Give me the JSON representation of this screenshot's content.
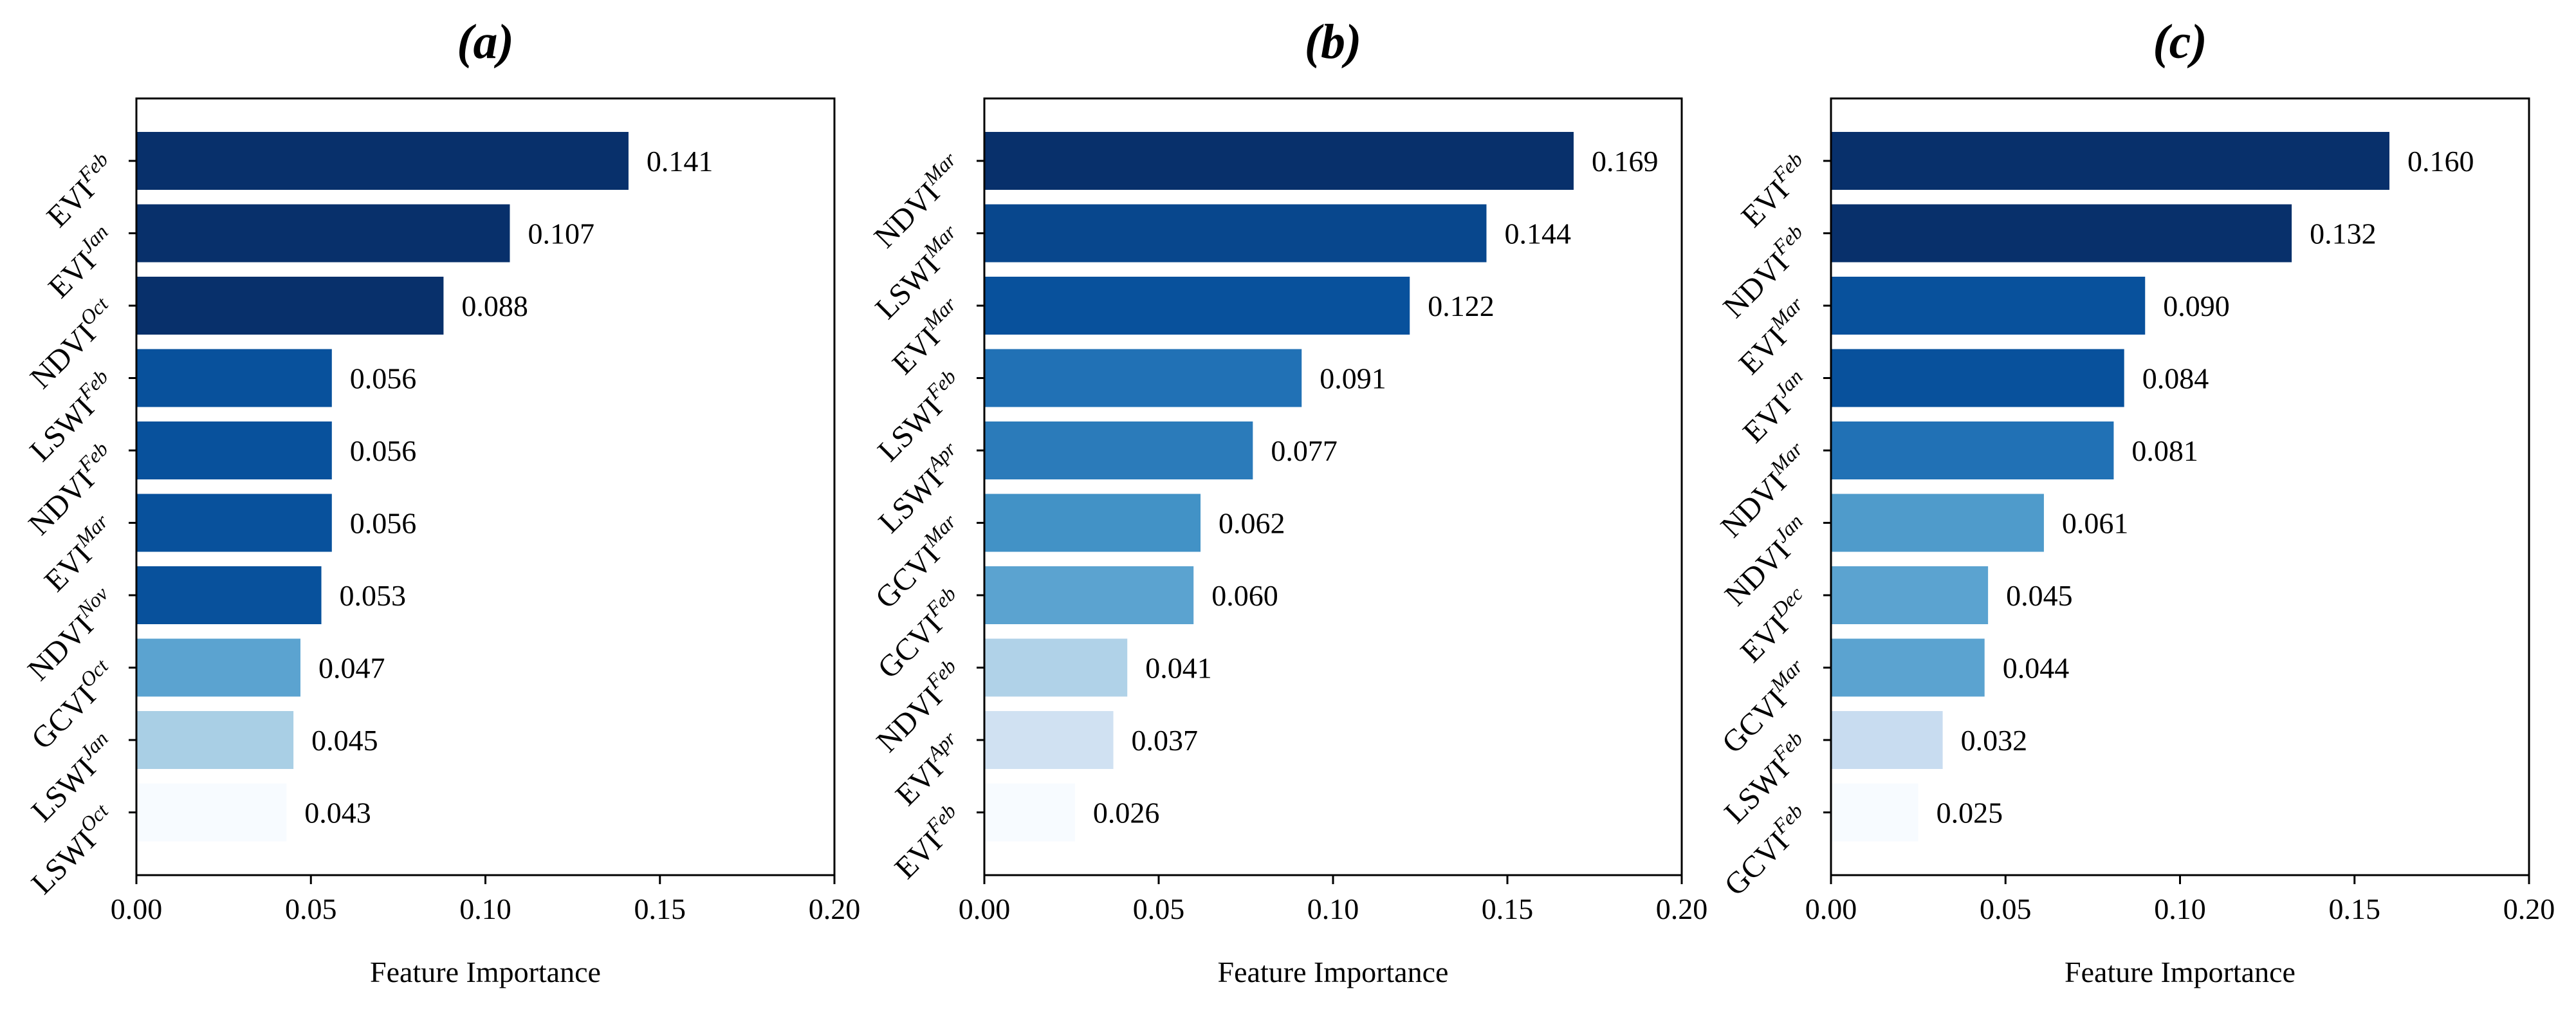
{
  "chart_data": [
    {
      "type": "bar",
      "orientation": "horizontal",
      "title": "(a)",
      "xlabel": "Feature Importance",
      "ylabel": "",
      "xlim": [
        0.0,
        0.2
      ],
      "xticks": [
        "0.00",
        "0.05",
        "0.10",
        "0.15",
        "0.20"
      ],
      "bars": [
        {
          "base": "EVI",
          "month": "Feb",
          "value": 0.141,
          "label": "0.141",
          "color": "#08306b"
        },
        {
          "base": "EVI",
          "month": "Jan",
          "value": 0.107,
          "label": "0.107",
          "color": "#08306b"
        },
        {
          "base": "NDVI",
          "month": "Oct",
          "value": 0.088,
          "label": "0.088",
          "color": "#08306b"
        },
        {
          "base": "LSWI",
          "month": "Feb",
          "value": 0.056,
          "label": "0.056",
          "color": "#08519c"
        },
        {
          "base": "NDVI",
          "month": "Feb",
          "value": 0.056,
          "label": "0.056",
          "color": "#08519c"
        },
        {
          "base": "EVI",
          "month": "Mar",
          "value": 0.056,
          "label": "0.056",
          "color": "#08519c"
        },
        {
          "base": "NDVI",
          "month": "Nov",
          "value": 0.053,
          "label": "0.053",
          "color": "#08519c"
        },
        {
          "base": "GCVI",
          "month": "Oct",
          "value": 0.047,
          "label": "0.047",
          "color": "#5ba3d0"
        },
        {
          "base": "LSWI",
          "month": "Jan",
          "value": 0.045,
          "label": "0.045",
          "color": "#a9cfe5"
        },
        {
          "base": "LSWI",
          "month": "Oct",
          "value": 0.043,
          "label": "0.043",
          "color": "#f7fbff"
        }
      ]
    },
    {
      "type": "bar",
      "orientation": "horizontal",
      "title": "(b)",
      "xlabel": "Feature Importance",
      "ylabel": "",
      "xlim": [
        0.0,
        0.2
      ],
      "xticks": [
        "0.00",
        "0.05",
        "0.10",
        "0.15",
        "0.20"
      ],
      "bars": [
        {
          "base": "NDVI",
          "month": "Mar",
          "value": 0.169,
          "label": "0.169",
          "color": "#08306b"
        },
        {
          "base": "LSWI",
          "month": "Mar",
          "value": 0.144,
          "label": "0.144",
          "color": "#08478d"
        },
        {
          "base": "EVI",
          "month": "Mar",
          "value": 0.122,
          "label": "0.122",
          "color": "#08519c"
        },
        {
          "base": "LSWI",
          "month": "Feb",
          "value": 0.091,
          "label": "0.091",
          "color": "#2171b5"
        },
        {
          "base": "LSWI",
          "month": "Apr",
          "value": 0.077,
          "label": "0.077",
          "color": "#2b7bba"
        },
        {
          "base": "GCVI",
          "month": "Mar",
          "value": 0.062,
          "label": "0.062",
          "color": "#4292c6"
        },
        {
          "base": "GCVI",
          "month": "Feb",
          "value": 0.06,
          "label": "0.060",
          "color": "#5ba3d0"
        },
        {
          "base": "NDVI",
          "month": "Feb",
          "value": 0.041,
          "label": "0.041",
          "color": "#b0d2e8"
        },
        {
          "base": "EVI",
          "month": "Apr",
          "value": 0.037,
          "label": "0.037",
          "color": "#d0e1f2"
        },
        {
          "base": "EVI",
          "month": "Feb",
          "value": 0.026,
          "label": "0.026",
          "color": "#f7fbff"
        }
      ]
    },
    {
      "type": "bar",
      "orientation": "horizontal",
      "title": "(c)",
      "xlabel": "Feature Importance",
      "ylabel": "",
      "xlim": [
        0.0,
        0.2
      ],
      "xticks": [
        "0.00",
        "0.05",
        "0.10",
        "0.15",
        "0.20"
      ],
      "bars": [
        {
          "base": "EVI",
          "month": "Feb",
          "value": 0.16,
          "label": "0.160",
          "color": "#08306b"
        },
        {
          "base": "NDVI",
          "month": "Feb",
          "value": 0.132,
          "label": "0.132",
          "color": "#08306b"
        },
        {
          "base": "EVI",
          "month": "Mar",
          "value": 0.09,
          "label": "0.090",
          "color": "#08519c"
        },
        {
          "base": "EVI",
          "month": "Jan",
          "value": 0.084,
          "label": "0.084",
          "color": "#08519c"
        },
        {
          "base": "NDVI",
          "month": "Mar",
          "value": 0.081,
          "label": "0.081",
          "color": "#2171b5"
        },
        {
          "base": "NDVI",
          "month": "Jan",
          "value": 0.061,
          "label": "0.061",
          "color": "#4f9bcb"
        },
        {
          "base": "EVI",
          "month": "Dec",
          "value": 0.045,
          "label": "0.045",
          "color": "#5ba3d0"
        },
        {
          "base": "GCVI",
          "month": "Mar",
          "value": 0.044,
          "label": "0.044",
          "color": "#5ba3d0"
        },
        {
          "base": "LSWI",
          "month": "Feb",
          "value": 0.032,
          "label": "0.032",
          "color": "#c8dcf0"
        },
        {
          "base": "GCVI",
          "month": "Feb",
          "value": 0.025,
          "label": "0.025",
          "color": "#f7fbff"
        }
      ]
    }
  ]
}
